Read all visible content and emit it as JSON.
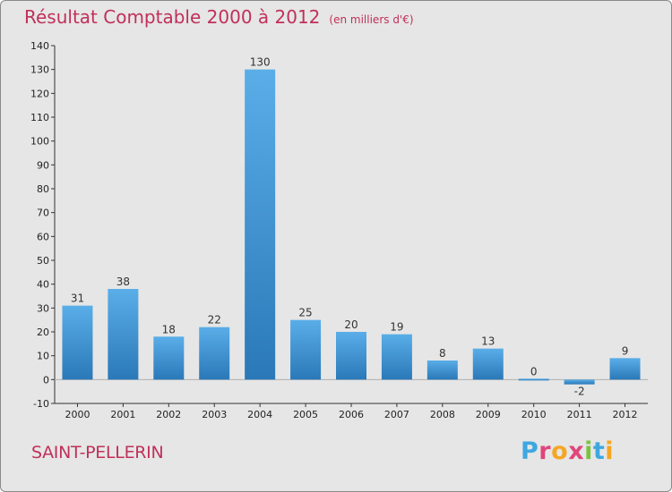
{
  "header": {
    "title": "Résultat Comptable 2000 à 2012",
    "unit": "(en milliers d'€)"
  },
  "footer": {
    "commune": "SAINT-PELLERIN",
    "logo_letters": [
      "P",
      "r",
      "o",
      "x",
      "i",
      "t",
      "i"
    ],
    "logo_colors": [
      "#3fa7e0",
      "#e0457b",
      "#f5a623",
      "#e0457b",
      "#7cc242",
      "#3fa7e0",
      "#f5a623"
    ]
  },
  "chart_data": {
    "type": "bar",
    "title": "Résultat Comptable 2000 à 2012",
    "subtitle": "(en milliers d'€)",
    "categories": [
      "2000",
      "2001",
      "2002",
      "2003",
      "2004",
      "2005",
      "2006",
      "2007",
      "2008",
      "2009",
      "2010",
      "2011",
      "2012"
    ],
    "values": [
      31,
      38,
      18,
      22,
      130,
      25,
      20,
      19,
      8,
      13,
      0,
      -2,
      9
    ],
    "value_labels": [
      "31",
      "38",
      "18",
      "22",
      "130",
      "25",
      "20",
      "19",
      "8",
      "13",
      "0",
      "-2",
      "9"
    ],
    "yticks": [
      "-10",
      "0",
      "10",
      "20",
      "30",
      "40",
      "50",
      "60",
      "70",
      "80",
      "90",
      "100",
      "110",
      "120",
      "130",
      "140"
    ],
    "ylim": [
      -10,
      140
    ],
    "xlabel": "",
    "ylabel": "",
    "grid": false,
    "colors": {
      "bar_light": "#5aaee8",
      "bar_dark": "#2a78b8",
      "axis": "#333333"
    }
  }
}
